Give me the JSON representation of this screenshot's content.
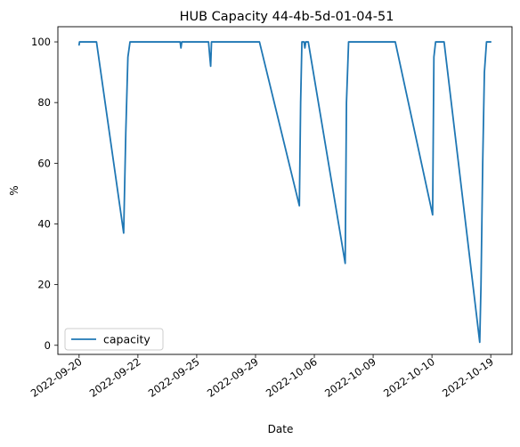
{
  "chart_data": {
    "type": "line",
    "title": "HUB Capacity 44-4b-5d-01-04-51",
    "xlabel": "Date",
    "ylabel": "%",
    "ylim": [
      -3,
      105
    ],
    "yticks": [
      0,
      20,
      40,
      60,
      80,
      100
    ],
    "xtick_labels": [
      "2022-09-20",
      "2022-09-22",
      "2022-09-25",
      "2022-09-29",
      "2022-10-06",
      "2022-10-09",
      "2022-10-10",
      "2022-10-19"
    ],
    "grid": false,
    "legend_placement": "lower-left",
    "series": [
      {
        "name": "capacity",
        "color": "#1f77b4",
        "x": [
          0,
          0.1,
          0.4,
          1.8,
          4.1,
          10.5,
          11.0,
          11.5,
          12.0,
          12.5,
          13.0,
          23.8,
          24.0,
          24.2,
          24.4,
          24.6,
          30.5,
          30.8,
          31.0,
          31.2,
          31.4,
          42.5,
          51.9,
          52.2,
          52.5,
          53.0,
          53.2,
          53.4,
          54.0,
          62.7,
          63.0,
          63.5,
          64.0,
          70.0,
          70.4,
          74.5,
          83.3,
          83.6,
          84.0,
          84.5,
          85.5,
          86.0,
          94.4,
          94.7,
          95.1,
          95.5,
          96.0,
          96.5,
          97.0
        ],
        "values": [
          99,
          100,
          100,
          100,
          100,
          37,
          70,
          95,
          100,
          100,
          100,
          100,
          98,
          100,
          100,
          100,
          100,
          95,
          92,
          100,
          100,
          100,
          46,
          80,
          100,
          100,
          98,
          100,
          100,
          27,
          80,
          100,
          100,
          100,
          100,
          100,
          43,
          95,
          100,
          100,
          100,
          100,
          1,
          20,
          60,
          90,
          100,
          100,
          100
        ]
      }
    ]
  }
}
